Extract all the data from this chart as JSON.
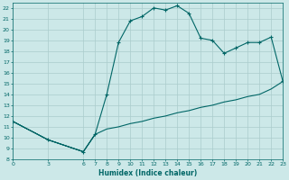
{
  "xlabel": "Humidex (Indice chaleur)",
  "background_color": "#cce8e8",
  "grid_color": "#aacccc",
  "line_color": "#006666",
  "xlim": [
    0,
    23
  ],
  "ylim": [
    8,
    22.5
  ],
  "xticks": [
    0,
    3,
    6,
    7,
    8,
    9,
    10,
    11,
    12,
    13,
    14,
    15,
    16,
    17,
    18,
    19,
    20,
    21,
    22,
    23
  ],
  "yticks": [
    8,
    9,
    10,
    11,
    12,
    13,
    14,
    15,
    16,
    17,
    18,
    19,
    20,
    21,
    22
  ],
  "x": [
    0,
    3,
    6,
    7,
    8,
    9,
    10,
    11,
    12,
    13,
    14,
    15,
    16,
    17,
    18,
    19,
    20,
    21,
    22,
    23,
    23,
    22,
    21,
    20,
    19,
    18,
    17,
    16,
    15,
    14,
    13,
    12,
    11,
    10,
    9,
    8,
    7,
    6,
    3,
    0
  ],
  "y": [
    11.5,
    9.8,
    8.7,
    10.3,
    14.0,
    18.8,
    20.8,
    21.2,
    22.0,
    21.8,
    22.2,
    21.5,
    19.2,
    19.0,
    17.8,
    18.3,
    18.8,
    18.8,
    19.3,
    15.2,
    15.2,
    14.5,
    14.0,
    13.8,
    13.5,
    13.3,
    13.0,
    12.8,
    12.5,
    12.3,
    12.0,
    11.8,
    11.5,
    11.3,
    11.0,
    10.8,
    10.3,
    8.7,
    9.8,
    11.5
  ],
  "marker_x": [
    0,
    3,
    6,
    7,
    8,
    9,
    10,
    11,
    12,
    13,
    14,
    15,
    16,
    17,
    18,
    19,
    20,
    21,
    22,
    23
  ],
  "marker_y": [
    11.5,
    9.8,
    8.7,
    10.3,
    14.0,
    18.8,
    20.8,
    21.2,
    22.0,
    21.8,
    22.2,
    21.5,
    19.2,
    19.0,
    17.8,
    18.3,
    18.8,
    18.8,
    19.3,
    15.2
  ]
}
